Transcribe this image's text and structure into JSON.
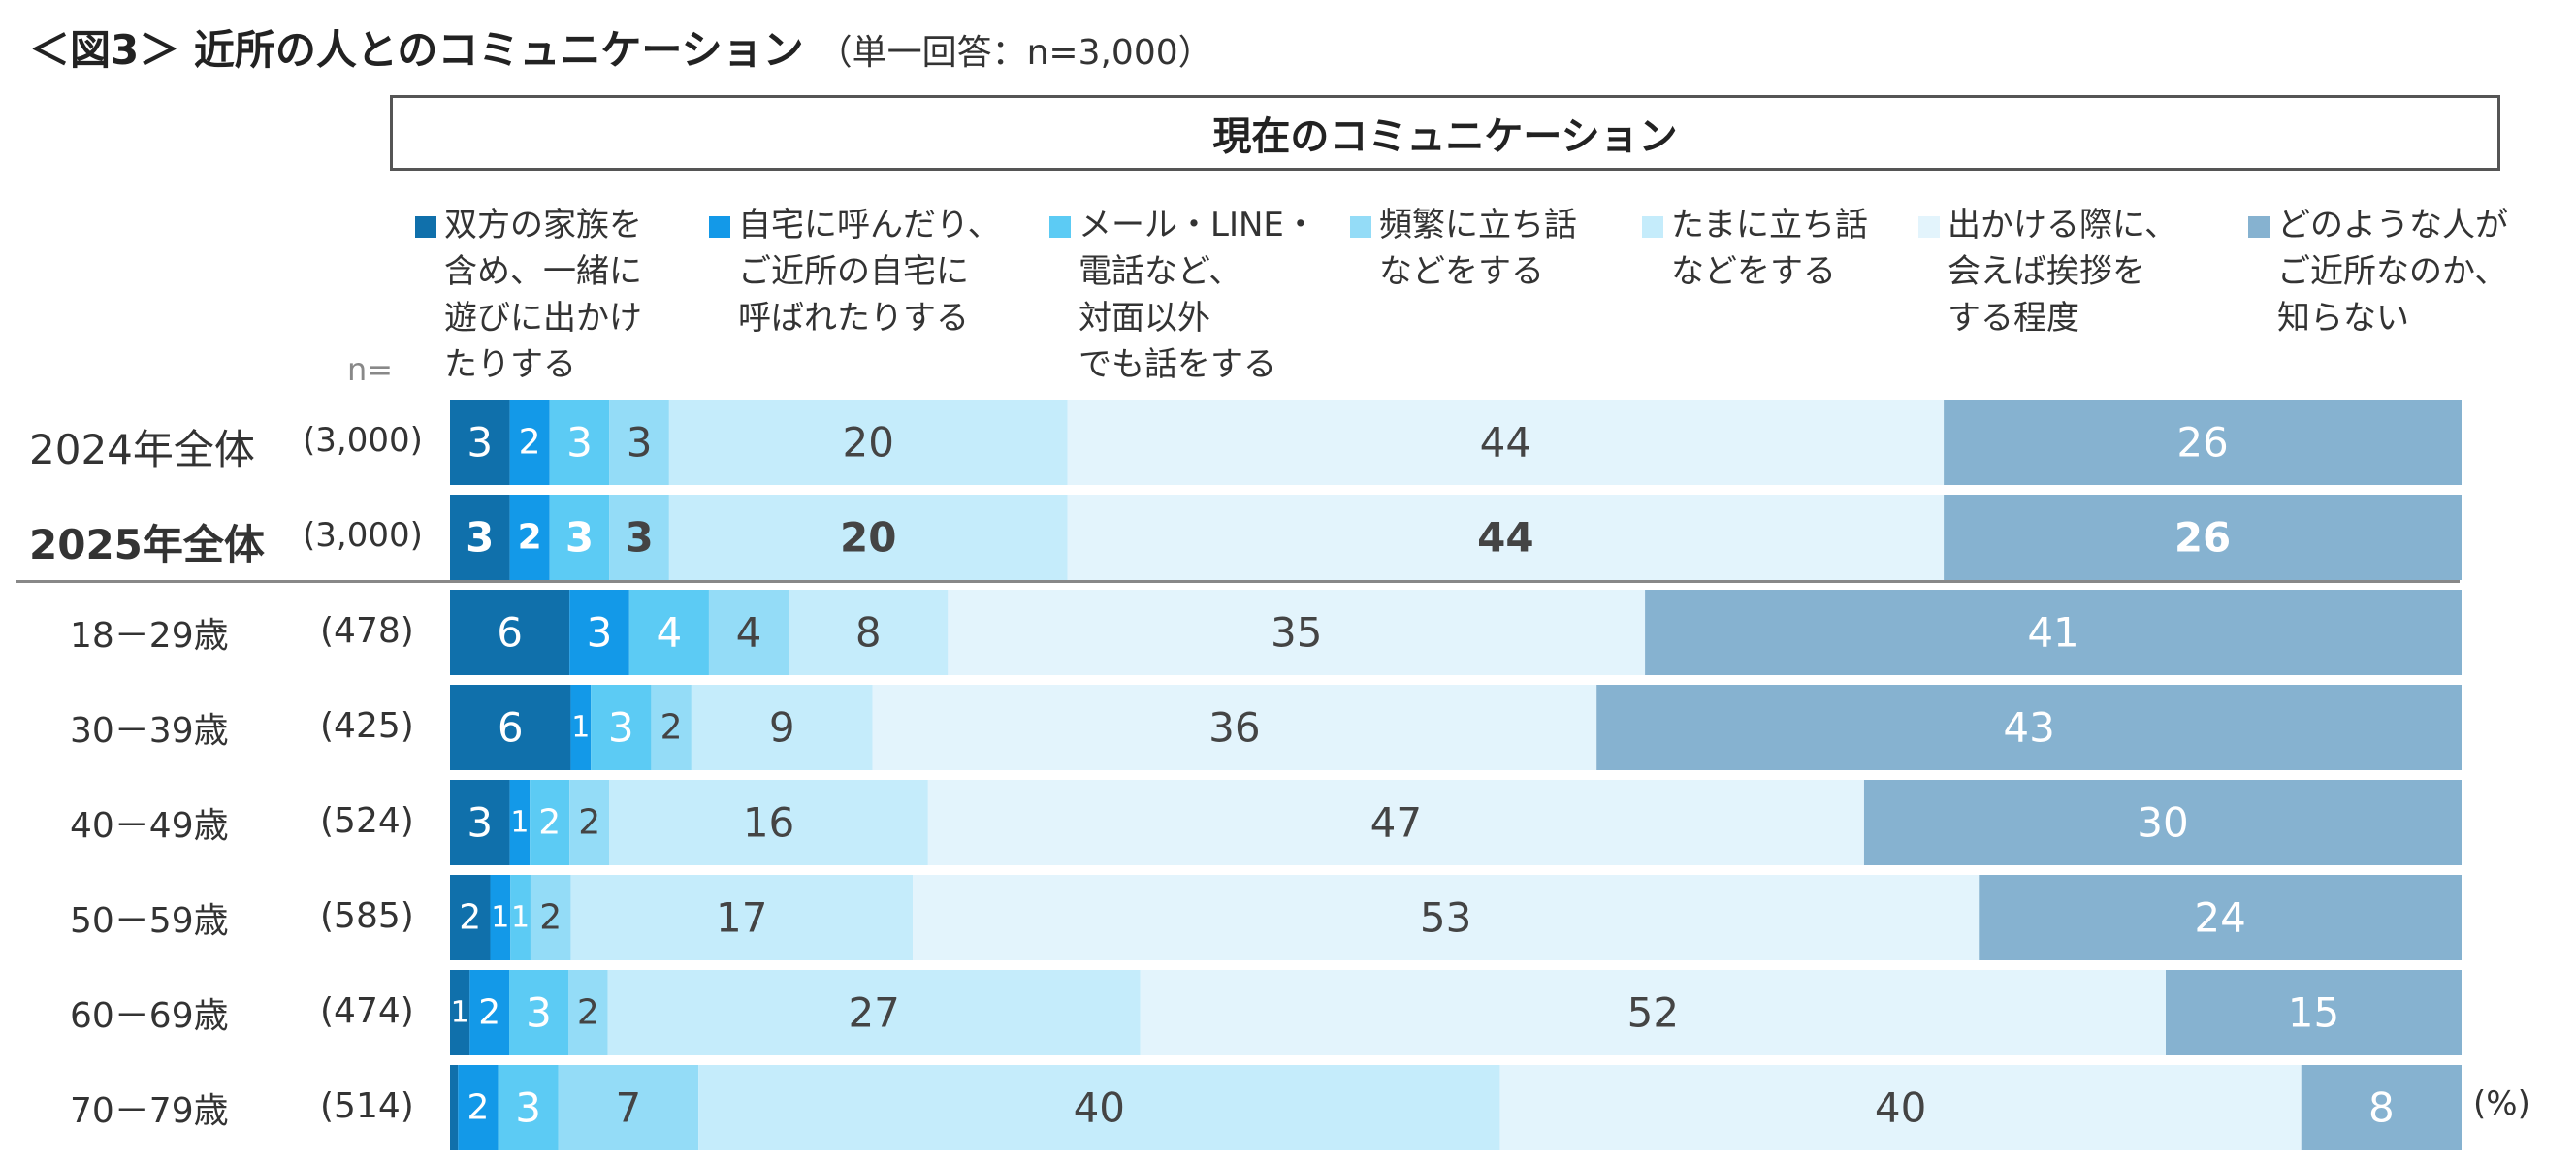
{
  "title": "＜図3＞ 近所の人とのコミュニケーション",
  "subtitle": "（単一回答：n=3,000）",
  "section_header": "現在のコミュニケーション",
  "n_label": "n=",
  "percent_unit": "(%)",
  "colors": [
    "#1070ab",
    "#1399e8",
    "#5ccbf4",
    "#94dcf7",
    "#c5ecfb",
    "#e3f4fc",
    "#86b2d0"
  ],
  "label_colors": [
    "#ffffff",
    "#ffffff",
    "#ffffff",
    "#444444",
    "#444444",
    "#444444",
    "#ffffff"
  ],
  "chart_data": {
    "type": "bar",
    "orientation": "horizontal",
    "stacked": true,
    "unit": "%",
    "xlim": [
      0,
      100
    ],
    "categories": [
      "2024年全体",
      "2025年全体",
      "18－29歳",
      "30－39歳",
      "40－49歳",
      "50－59歳",
      "60－69歳",
      "70－79歳"
    ],
    "n": [
      "(3,000)",
      "(3,000)",
      "(478)",
      "(425)",
      "(524)",
      "(585)",
      "(474)",
      "(514)"
    ],
    "bold_categories": [
      "2025年全体"
    ],
    "series": [
      {
        "name": "双方の家族を\n含め、一緒に\n遊びに出かけ\nたりする",
        "values": [
          3,
          3,
          6,
          6,
          3,
          2,
          1,
          0.4
        ]
      },
      {
        "name": "自宅に呼んだり、\nご近所の自宅に\n呼ばれたりする",
        "values": [
          2,
          2,
          3,
          1,
          1,
          1,
          2,
          2
        ]
      },
      {
        "name": "メール・LINE・\n電話など、\n対面以外\nでも話をする",
        "values": [
          3,
          3,
          4,
          3,
          2,
          1,
          3,
          3
        ]
      },
      {
        "name": "頻繁に立ち話\nなどをする",
        "values": [
          3,
          3,
          4,
          2,
          2,
          2,
          2,
          7
        ]
      },
      {
        "name": "たまに立ち話\nなどをする",
        "values": [
          20,
          20,
          8,
          9,
          16,
          17,
          27,
          40
        ]
      },
      {
        "name": "出かける際に、\n会えば挨拶を\nする程度",
        "values": [
          44,
          44,
          35,
          36,
          47,
          53,
          52,
          40
        ]
      },
      {
        "name": "どのような人が\nご近所なのか、\n知らない",
        "values": [
          26,
          26,
          41,
          43,
          30,
          24,
          15,
          8
        ]
      }
    ],
    "data_labels": [
      [
        "3",
        "2",
        "3",
        "3",
        "20",
        "44",
        "26"
      ],
      [
        "3",
        "2",
        "3",
        "3",
        "20",
        "44",
        "26"
      ],
      [
        "6",
        "3",
        "4",
        "4",
        "8",
        "35",
        "41"
      ],
      [
        "6",
        "1",
        "3",
        "2",
        "9",
        "36",
        "43"
      ],
      [
        "3",
        "1",
        "2",
        "2",
        "16",
        "47",
        "30"
      ],
      [
        "2",
        "1",
        "1",
        "2",
        "17",
        "53",
        "24"
      ],
      [
        "1",
        "2",
        "3",
        "2",
        "27",
        "52",
        "15"
      ],
      [
        "",
        "2",
        "3",
        "7",
        "40",
        "40",
        "8"
      ]
    ]
  }
}
